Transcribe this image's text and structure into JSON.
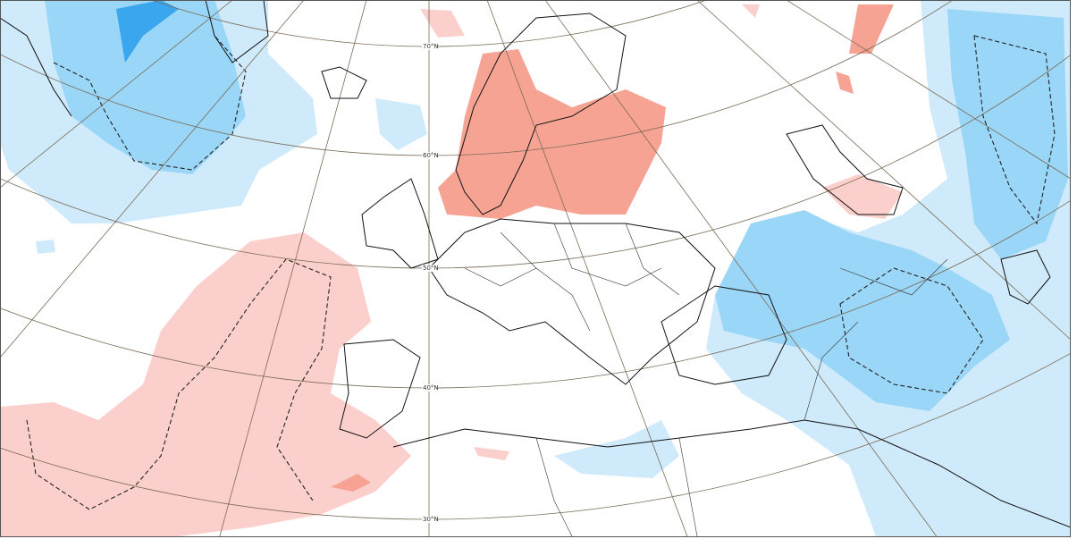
{
  "map": {
    "latitude_labels": [
      "70°N",
      "60°N",
      "50°N",
      "40°N",
      "30°N"
    ]
  }
}
